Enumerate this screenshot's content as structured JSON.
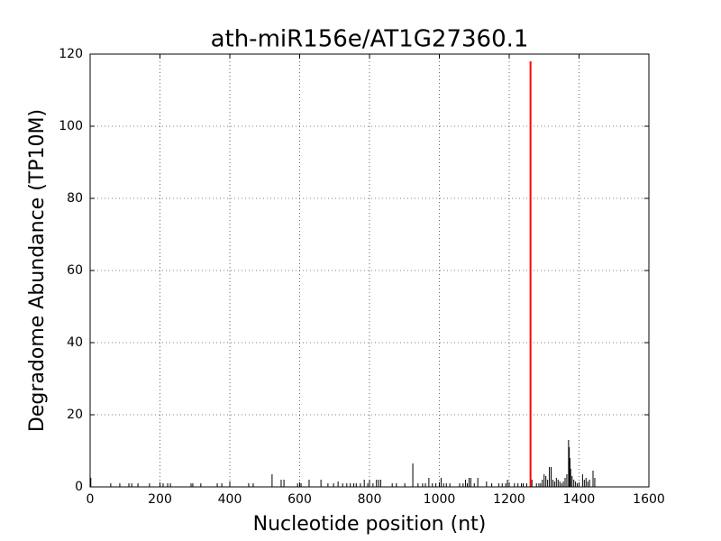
{
  "chart_data": {
    "type": "stem",
    "title": "ath-miR156e/AT1G27360.1",
    "xlabel": "Nucleotide position (nt)",
    "ylabel": "Degradome Abundance (TP10M)",
    "xlim": [
      0,
      1600
    ],
    "ylim": [
      0,
      120
    ],
    "xticks": [
      0,
      200,
      400,
      600,
      800,
      1000,
      1200,
      1400,
      1600
    ],
    "yticks": [
      0,
      20,
      40,
      60,
      80,
      100,
      120
    ],
    "grid": true,
    "series": [
      {
        "color": "#000000",
        "x": [
          2,
          59,
          85,
          111,
          119,
          137,
          170,
          209,
          222,
          230,
          289,
          294,
          317,
          364,
          377,
          400,
          454,
          467,
          521,
          547,
          555,
          594,
          604,
          627,
          661,
          681,
          697,
          710,
          723,
          735,
          745,
          755,
          762,
          774,
          785,
          795,
          800,
          810,
          820,
          826,
          832,
          865,
          877,
          901,
          924,
          939,
          952,
          960,
          970,
          980,
          990,
          1000,
          1005,
          1012,
          1020,
          1030,
          1058,
          1068,
          1075,
          1080,
          1085,
          1090,
          1100,
          1110,
          1135,
          1150,
          1170,
          1180,
          1190,
          1195,
          1215,
          1225,
          1235,
          1240,
          1250,
          1265,
          1278,
          1285,
          1290,
          1295,
          1300,
          1305,
          1310,
          1315,
          1320,
          1325,
          1330,
          1335,
          1340,
          1345,
          1350,
          1355,
          1360,
          1365,
          1370,
          1372,
          1374,
          1376,
          1380,
          1385,
          1390,
          1395,
          1400,
          1410,
          1415,
          1420,
          1425,
          1430,
          1440,
          1445
        ],
        "values": [
          2.5,
          1,
          1,
          1,
          1,
          1,
          1,
          1,
          1,
          1,
          1,
          1,
          1,
          1,
          1,
          1.5,
          1,
          1,
          3.5,
          2,
          2,
          1,
          1,
          2,
          2,
          1,
          1,
          1.5,
          1,
          1,
          1,
          1,
          1,
          1,
          2,
          1,
          2,
          1,
          2,
          2,
          2,
          1,
          1,
          1,
          6.5,
          1,
          1,
          1,
          2.5,
          1,
          1,
          1,
          2.5,
          1,
          1,
          1,
          1,
          1,
          2,
          1,
          2.5,
          2.5,
          1,
          2.5,
          1.5,
          1,
          1,
          1,
          1,
          2,
          1,
          1,
          1,
          1,
          1,
          2,
          1,
          1,
          1,
          2,
          3.5,
          3,
          2,
          5.5,
          5.5,
          2,
          1.5,
          2.5,
          2,
          1.5,
          1,
          1.5,
          2.5,
          3.5,
          13,
          11,
          8,
          5,
          3,
          2,
          1.5,
          1,
          1,
          3.5,
          2,
          2.5,
          1.5,
          2,
          4.5,
          2.5
        ]
      },
      {
        "color": "#ff0000",
        "x": [
          1261
        ],
        "values": [
          118
        ]
      }
    ]
  }
}
